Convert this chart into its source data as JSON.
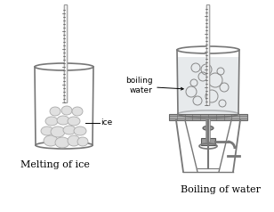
{
  "label_ice": "ice",
  "label_boiling_water": "boiling\nwater",
  "label_left": "Melting of ice",
  "label_right": "Boiling of water",
  "bg_color": "#ffffff",
  "beaker_color": "#777777",
  "thermometer_color": "#999999",
  "stand_color": "#777777",
  "font_size_label": 6.5,
  "font_size_caption": 8
}
